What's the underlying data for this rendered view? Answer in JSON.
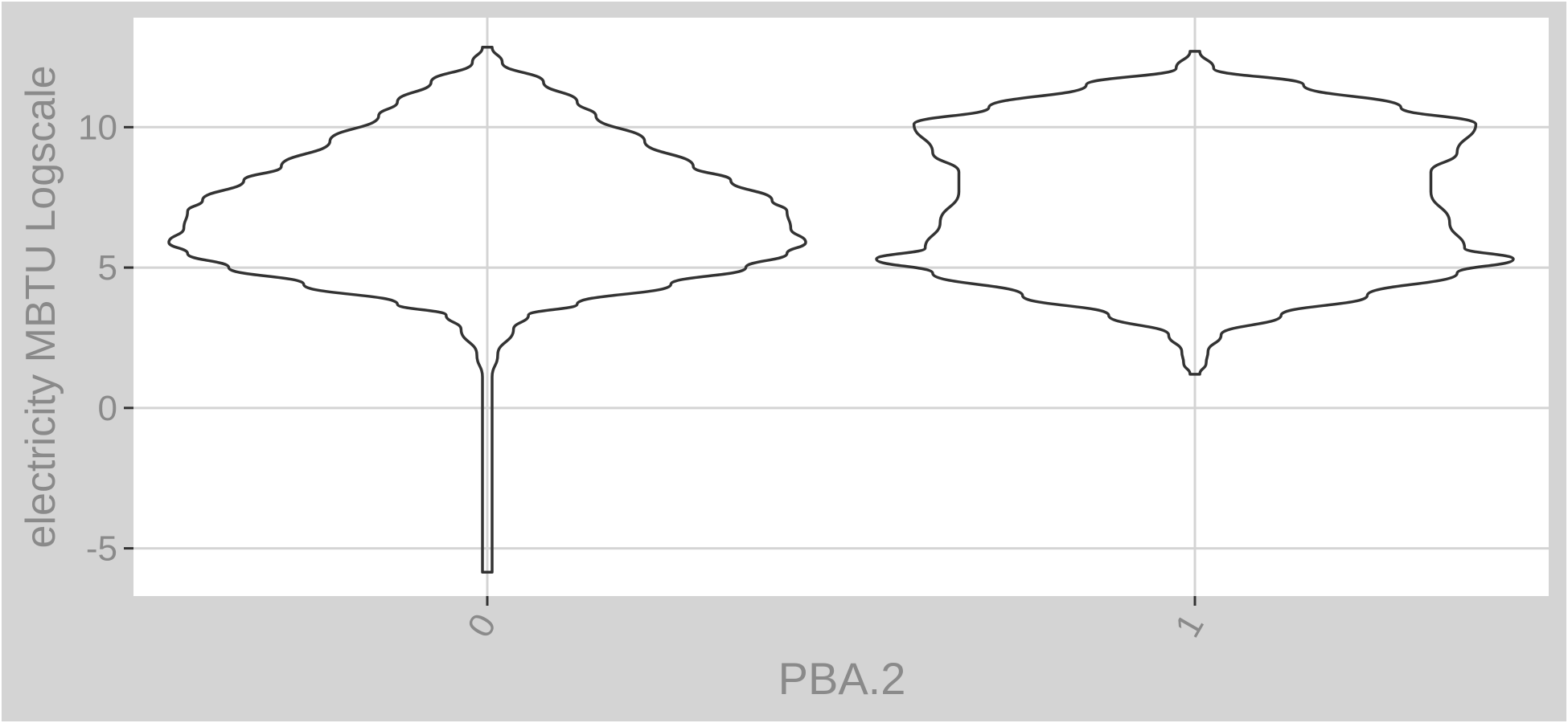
{
  "chart_data": {
    "type": "violin",
    "xlabel": "PBA.2",
    "ylabel": "electricity MBTU Logscale",
    "categories": [
      "0",
      "1"
    ],
    "y_ticks": [
      -5,
      0,
      5,
      10
    ],
    "y_tick_labels": [
      "-5",
      "0",
      "5",
      "10"
    ],
    "ylim": [
      -6.7,
      13.9
    ],
    "grid": true,
    "legend": "none",
    "colors": {
      "panel_bg": "#ffffff",
      "figure_bg": "#d4d4d4",
      "grid": "#d4d4d4",
      "violin_stroke": "#333333",
      "text": "#8a8a8a"
    },
    "series": [
      {
        "category": "0",
        "y_min": -5.85,
        "y_max": 12.85,
        "density_profile": [
          [
            12.85,
            0.0
          ],
          [
            12.3,
            0.4
          ],
          [
            11.6,
            1.5
          ],
          [
            10.9,
            2.4
          ],
          [
            10.4,
            2.9
          ],
          [
            9.5,
            4.2
          ],
          [
            8.6,
            5.5
          ],
          [
            8.1,
            6.5
          ],
          [
            7.4,
            7.6
          ],
          [
            7.0,
            8.0
          ],
          [
            6.4,
            8.1
          ],
          [
            5.9,
            8.5
          ],
          [
            5.5,
            8.0
          ],
          [
            5.0,
            6.9
          ],
          [
            4.4,
            4.9
          ],
          [
            3.7,
            2.4
          ],
          [
            3.3,
            1.1
          ],
          [
            2.8,
            0.7
          ],
          [
            1.9,
            0.28
          ],
          [
            1.1,
            0.1
          ],
          [
            0.0,
            0.06
          ],
          [
            -0.9,
            0.06
          ],
          [
            -2.0,
            0.05
          ],
          [
            -3.5,
            0.04
          ],
          [
            -5.0,
            0.03
          ],
          [
            -5.85,
            0.0
          ]
        ]
      },
      {
        "category": "1",
        "y_min": 1.2,
        "y_max": 12.7,
        "density_profile": [
          [
            12.7,
            0.0
          ],
          [
            12.1,
            0.5
          ],
          [
            11.5,
            2.9
          ],
          [
            10.7,
            5.5
          ],
          [
            10.1,
            7.5
          ],
          [
            9.1,
            7.0
          ],
          [
            8.4,
            6.3
          ],
          [
            7.7,
            6.3
          ],
          [
            6.6,
            6.8
          ],
          [
            5.7,
            7.2
          ],
          [
            5.3,
            8.5
          ],
          [
            4.8,
            7.0
          ],
          [
            4.0,
            4.6
          ],
          [
            3.3,
            2.3
          ],
          [
            2.6,
            0.7
          ],
          [
            2.0,
            0.35
          ],
          [
            1.6,
            0.3
          ],
          [
            1.2,
            0.0
          ]
        ]
      }
    ]
  }
}
